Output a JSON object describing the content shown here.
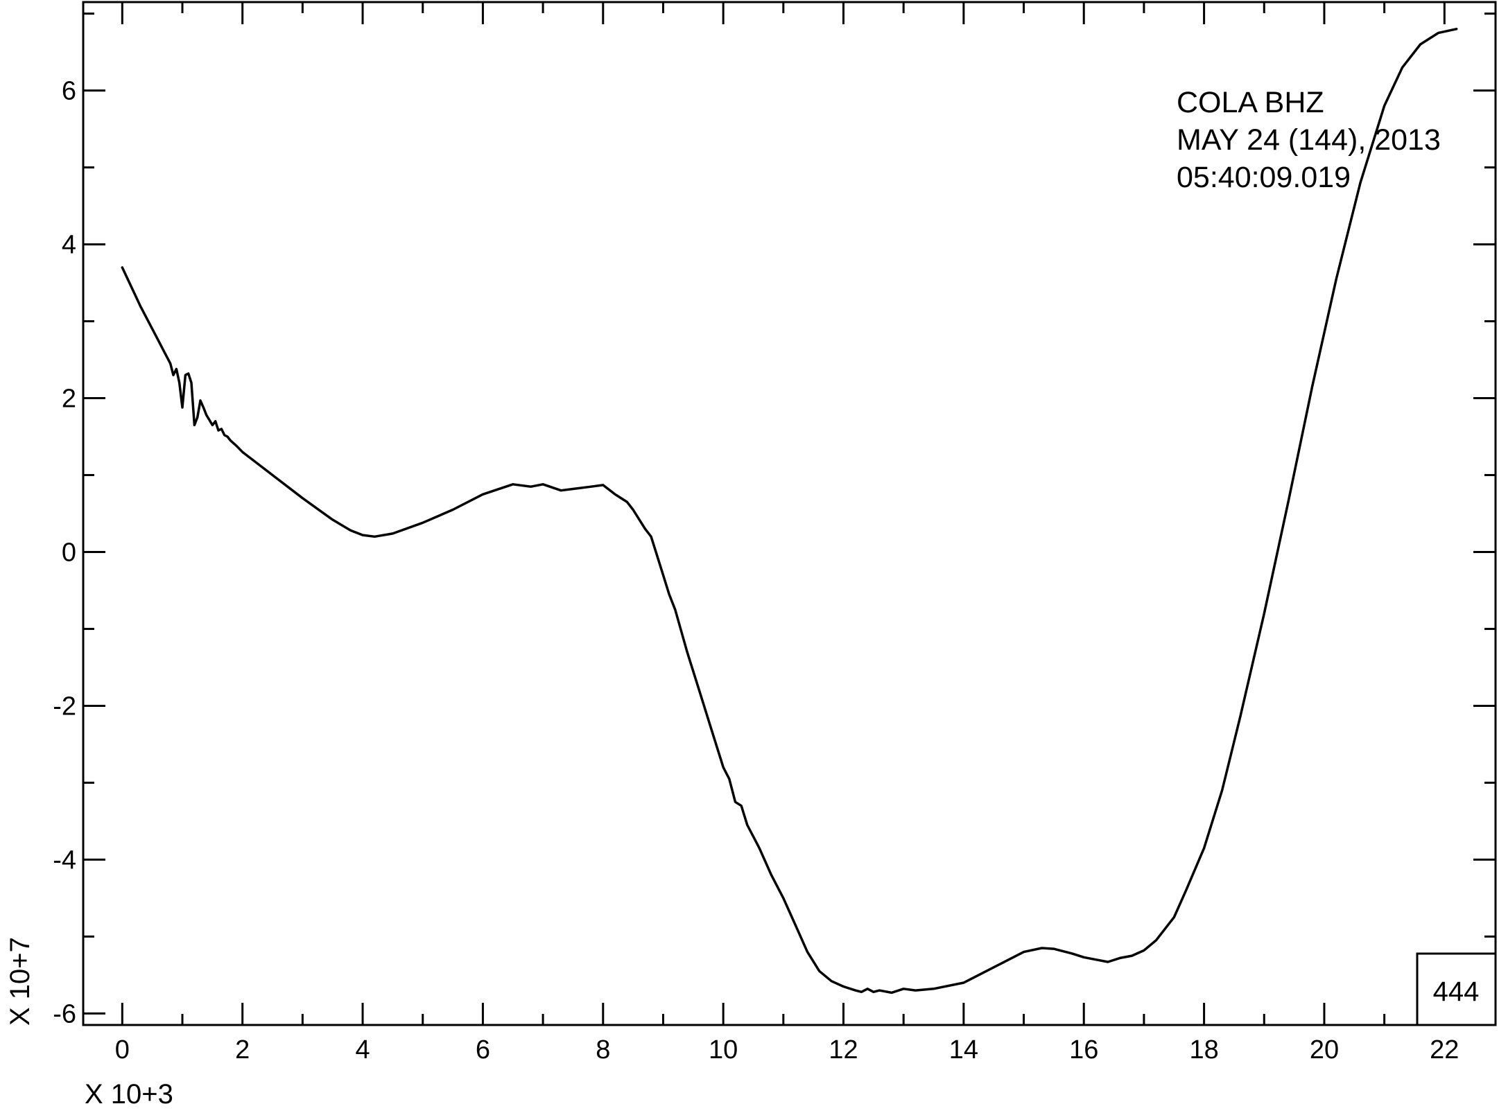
{
  "chart_data": {
    "type": "line",
    "title": "",
    "xlabel": "",
    "ylabel": "",
    "x_multiplier_label": "X 10+3",
    "y_multiplier_label": "X 10+7",
    "xlim": [
      -0.65,
      22.85
    ],
    "ylim": [
      -6.15,
      7.15
    ],
    "x_ticks": [
      0,
      2,
      4,
      6,
      8,
      10,
      12,
      14,
      16,
      18,
      20,
      22
    ],
    "x_tick_labels": [
      "0",
      "2",
      "4",
      "6",
      "8",
      "10",
      "12",
      "14",
      "16",
      "18",
      "20",
      "22"
    ],
    "y_ticks": [
      -6,
      -4,
      -2,
      0,
      2,
      4,
      6
    ],
    "y_tick_labels": [
      "-6",
      "-4",
      "-2",
      "0",
      "2",
      "4",
      "6"
    ],
    "grid": false,
    "annotation_lines": [
      "COLA  BHZ",
      "MAY 24 (144), 2013",
      "05:40:09.019"
    ],
    "box_label": "444",
    "series": [
      {
        "color": "#000000",
        "x": [
          0,
          0.3,
          0.6,
          0.7,
          0.8,
          0.85,
          0.9,
          0.95,
          1.0,
          1.05,
          1.1,
          1.15,
          1.2,
          1.25,
          1.3,
          1.35,
          1.4,
          1.5,
          1.55,
          1.6,
          1.65,
          1.7,
          1.75,
          1.8,
          1.9,
          2.0,
          2.2,
          2.5,
          3.0,
          3.5,
          3.8,
          4.0,
          4.2,
          4.5,
          5.0,
          5.5,
          6.0,
          6.5,
          6.8,
          7.0,
          7.3,
          7.5,
          7.8,
          8.0,
          8.2,
          8.4,
          8.5,
          8.7,
          8.8,
          9.0,
          9.1,
          9.2,
          9.4,
          9.6,
          9.8,
          10.0,
          10.1,
          10.2,
          10.3,
          10.4,
          10.5,
          10.6,
          10.8,
          11.0,
          11.2,
          11.4,
          11.6,
          11.8,
          12.0,
          12.2,
          12.3,
          12.4,
          12.5,
          12.6,
          12.8,
          13.0,
          13.2,
          13.5,
          14.0,
          14.5,
          15.0,
          15.3,
          15.5,
          15.8,
          16.0,
          16.2,
          16.4,
          16.6,
          16.8,
          17.0,
          17.2,
          17.5,
          17.7,
          18.0,
          18.3,
          18.6,
          19.0,
          19.4,
          19.8,
          20.2,
          20.6,
          21.0,
          21.3,
          21.6,
          21.9,
          22.2
        ],
        "y": [
          3.7,
          3.2,
          2.75,
          2.6,
          2.45,
          2.3,
          2.38,
          2.2,
          1.88,
          2.3,
          2.32,
          2.2,
          1.65,
          1.75,
          1.97,
          1.88,
          1.78,
          1.65,
          1.7,
          1.58,
          1.6,
          1.52,
          1.5,
          1.45,
          1.38,
          1.3,
          1.18,
          1.0,
          0.7,
          0.42,
          0.28,
          0.22,
          0.2,
          0.24,
          0.38,
          0.55,
          0.75,
          0.88,
          0.85,
          0.88,
          0.8,
          0.82,
          0.85,
          0.87,
          0.75,
          0.65,
          0.55,
          0.3,
          0.2,
          -0.3,
          -0.55,
          -0.75,
          -1.3,
          -1.8,
          -2.3,
          -2.8,
          -2.95,
          -3.25,
          -3.3,
          -3.55,
          -3.7,
          -3.85,
          -4.2,
          -4.5,
          -4.85,
          -5.2,
          -5.45,
          -5.58,
          -5.65,
          -5.7,
          -5.72,
          -5.68,
          -5.72,
          -5.7,
          -5.73,
          -5.68,
          -5.7,
          -5.68,
          -5.6,
          -5.4,
          -5.2,
          -5.15,
          -5.16,
          -5.22,
          -5.27,
          -5.3,
          -5.33,
          -5.28,
          -5.25,
          -5.18,
          -5.05,
          -4.75,
          -4.4,
          -3.85,
          -3.1,
          -2.15,
          -0.8,
          0.65,
          2.15,
          3.55,
          4.8,
          5.8,
          6.3,
          6.6,
          6.75,
          6.8
        ]
      }
    ]
  }
}
